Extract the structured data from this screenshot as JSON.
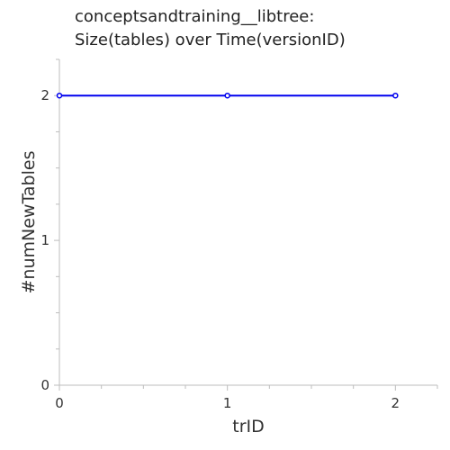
{
  "chart_data": {
    "type": "line",
    "title_lines": [
      "conceptsandtraining__libtree:",
      "Size(tables) over Time(versionID)"
    ],
    "xlabel": "trID",
    "ylabel": "#numNewTables",
    "x": [
      0,
      1,
      2
    ],
    "series": [
      {
        "values": [
          2,
          2,
          2
        ],
        "color": "#0000ee"
      }
    ],
    "xlim": [
      0,
      2.25
    ],
    "ylim": [
      0,
      2.25
    ],
    "x_ticks": [
      "0",
      "1",
      "2"
    ],
    "y_ticks": [
      "0",
      "1",
      "2"
    ],
    "x_ticks_values": [
      0,
      1,
      2
    ],
    "y_ticks_values": [
      0,
      1,
      2
    ],
    "x_minor_step": 0.25,
    "y_minor_step": 0.25,
    "grid": false,
    "legend": "none"
  }
}
